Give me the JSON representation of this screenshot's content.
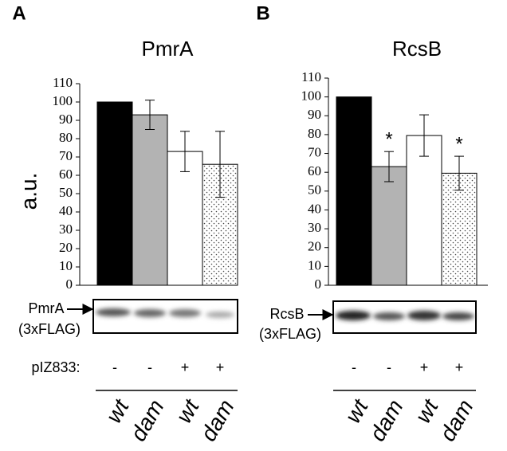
{
  "chart_data": [
    {
      "type": "bar",
      "panel": "A",
      "title": "PmrA",
      "ylabel": "a.u.",
      "categories": [
        "wt",
        "dam",
        "wt",
        "dam"
      ],
      "values": [
        100,
        93,
        73,
        66
      ],
      "errors": [
        null,
        8,
        11,
        18
      ],
      "colors": [
        "#000000",
        "#b3b3b3",
        "#ffffff",
        "#ffffff"
      ],
      "dotted": [
        false,
        false,
        false,
        true
      ],
      "markers": [
        null,
        null,
        null,
        null
      ],
      "ylim": [
        0,
        110
      ],
      "yticks": [
        0,
        10,
        20,
        30,
        40,
        50,
        60,
        70,
        80,
        90,
        100,
        110
      ],
      "blot_label": "PmrA",
      "blot_tag": "(3xFLAG)",
      "plasmid": [
        "-",
        "-",
        "+",
        "+"
      ]
    },
    {
      "type": "bar",
      "panel": "B",
      "title": "RcsB",
      "categories": [
        "wt",
        "dam",
        "wt",
        "dam"
      ],
      "values": [
        100,
        63,
        79.5,
        59.5
      ],
      "errors": [
        null,
        8,
        11,
        9
      ],
      "colors": [
        "#000000",
        "#b3b3b3",
        "#ffffff",
        "#ffffff"
      ],
      "dotted": [
        false,
        false,
        false,
        true
      ],
      "markers": [
        null,
        "*",
        null,
        "*"
      ],
      "ylim": [
        0,
        110
      ],
      "yticks": [
        0,
        10,
        20,
        30,
        40,
        50,
        60,
        70,
        80,
        90,
        100,
        110
      ],
      "blot_label": "RcsB",
      "blot_tag": "(3xFLAG)",
      "plasmid": [
        "-",
        "-",
        "+",
        "+"
      ]
    }
  ],
  "plasmid_label": "pIZ833:"
}
